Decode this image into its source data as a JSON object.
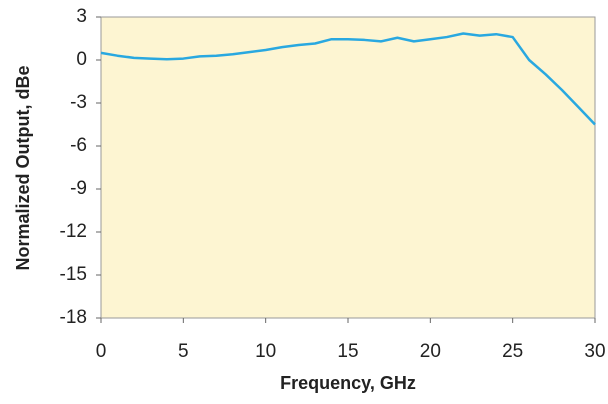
{
  "chart_data": {
    "type": "line",
    "xlabel": "Frequency, GHz",
    "ylabel": "Normalized Output, dBe",
    "x": [
      0,
      1,
      2,
      3,
      4,
      5,
      6,
      7,
      8,
      9,
      10,
      11,
      12,
      13,
      14,
      15,
      16,
      17,
      18,
      19,
      20,
      21,
      22,
      23,
      24,
      25,
      26,
      27,
      28,
      29,
      30
    ],
    "series": [
      {
        "name": "Output",
        "color": "#29a8e0",
        "values": [
          0.5,
          0.3,
          0.15,
          0.1,
          0.05,
          0.1,
          0.25,
          0.3,
          0.4,
          0.55,
          0.7,
          0.9,
          1.05,
          1.15,
          1.45,
          1.45,
          1.4,
          1.3,
          1.55,
          1.3,
          1.45,
          1.6,
          1.85,
          1.7,
          1.8,
          1.6,
          0,
          -1,
          -2.1,
          -3.3,
          -4.5
        ]
      }
    ],
    "xlim": [
      0,
      30
    ],
    "xticks": [
      0,
      5,
      10,
      15,
      20,
      25,
      30
    ],
    "ylim": [
      -18,
      3
    ],
    "yticks": [
      3,
      0,
      -3,
      -6,
      -9,
      -12,
      -15,
      -18
    ],
    "plot_background": "#fdf5d2"
  }
}
